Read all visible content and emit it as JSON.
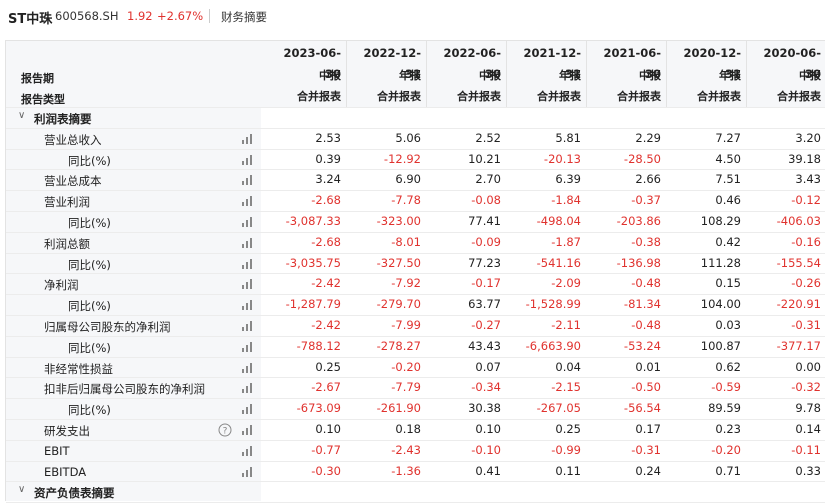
{
  "header": {
    "name": "ST中珠",
    "code": "600568.SH",
    "price": "1.92",
    "change": "+2.67%",
    "tab": "财务摘要"
  },
  "table": {
    "columns": [
      "2023-06-30",
      "2022-12-31",
      "2022-06-30",
      "2021-12-31",
      "2021-06-30",
      "2020-12-31",
      "2020-06-30"
    ],
    "period_label": "报告期",
    "periods": [
      "中报",
      "年报",
      "中报",
      "年报",
      "中报",
      "年报",
      "中报"
    ],
    "type_label": "报告类型",
    "types": [
      "合并报表",
      "合并报表",
      "合并报表",
      "合并报表",
      "合并报表",
      "合并报表",
      "合并报表"
    ],
    "sections": [
      {
        "title": "利润表摘要",
        "rows": [
          {
            "label": "营业总收入",
            "values": [
              "2.53",
              "5.06",
              "2.52",
              "5.81",
              "2.29",
              "7.27",
              "3.20"
            ],
            "children": [
              {
                "label": "同比(%)",
                "values": [
                  "0.39",
                  "-12.92",
                  "10.21",
                  "-20.13",
                  "-28.50",
                  "4.50",
                  "39.18"
                ]
              }
            ]
          },
          {
            "label": "营业总成本",
            "values": [
              "3.24",
              "6.90",
              "2.70",
              "6.39",
              "2.66",
              "7.51",
              "3.43"
            ],
            "children": []
          },
          {
            "label": "营业利润",
            "values": [
              "-2.68",
              "-7.78",
              "-0.08",
              "-1.84",
              "-0.37",
              "0.46",
              "-0.12"
            ],
            "children": [
              {
                "label": "同比(%)",
                "values": [
                  "-3,087.33",
                  "-323.00",
                  "77.41",
                  "-498.04",
                  "-203.86",
                  "108.29",
                  "-406.03"
                ]
              }
            ]
          },
          {
            "label": "利润总额",
            "values": [
              "-2.68",
              "-8.01",
              "-0.09",
              "-1.87",
              "-0.38",
              "0.42",
              "-0.16"
            ],
            "children": [
              {
                "label": "同比(%)",
                "values": [
                  "-3,035.75",
                  "-327.50",
                  "77.23",
                  "-541.16",
                  "-136.98",
                  "111.28",
                  "-155.54"
                ]
              }
            ]
          },
          {
            "label": "净利润",
            "values": [
              "-2.42",
              "-7.92",
              "-0.17",
              "-2.09",
              "-0.48",
              "0.15",
              "-0.26"
            ],
            "children": [
              {
                "label": "同比(%)",
                "values": [
                  "-1,287.79",
                  "-279.70",
                  "63.77",
                  "-1,528.99",
                  "-81.34",
                  "104.00",
                  "-220.91"
                ]
              }
            ]
          },
          {
            "label": "归属母公司股东的净利润",
            "values": [
              "-2.42",
              "-7.99",
              "-0.27",
              "-2.11",
              "-0.48",
              "0.03",
              "-0.31"
            ],
            "children": [
              {
                "label": "同比(%)",
                "values": [
                  "-788.12",
                  "-278.27",
                  "43.43",
                  "-6,663.90",
                  "-53.24",
                  "100.87",
                  "-377.17"
                ]
              }
            ]
          },
          {
            "label": "非经常性损益",
            "values": [
              "0.25",
              "-0.20",
              "0.07",
              "0.04",
              "0.01",
              "0.62",
              "0.00"
            ],
            "children": []
          },
          {
            "label": "扣非后归属母公司股东的净利润",
            "values": [
              "-2.67",
              "-7.79",
              "-0.34",
              "-2.15",
              "-0.50",
              "-0.59",
              "-0.32"
            ],
            "children": [
              {
                "label": "同比(%)",
                "values": [
                  "-673.09",
                  "-261.90",
                  "30.38",
                  "-267.05",
                  "-56.54",
                  "89.59",
                  "9.78"
                ]
              }
            ]
          },
          {
            "label": "研发支出",
            "values": [
              "0.10",
              "0.18",
              "0.10",
              "0.25",
              "0.17",
              "0.23",
              "0.14"
            ],
            "children": []
          },
          {
            "label": "EBIT",
            "values": [
              "-0.77",
              "-2.43",
              "-0.10",
              "-0.99",
              "-0.31",
              "-0.20",
              "-0.11"
            ],
            "children": []
          },
          {
            "label": "EBITDA",
            "values": [
              "-0.30",
              "-1.36",
              "0.41",
              "0.11",
              "0.24",
              "0.71",
              "0.33"
            ],
            "children": []
          }
        ]
      },
      {
        "title": "资产负债表摘要",
        "rows": []
      }
    ]
  }
}
